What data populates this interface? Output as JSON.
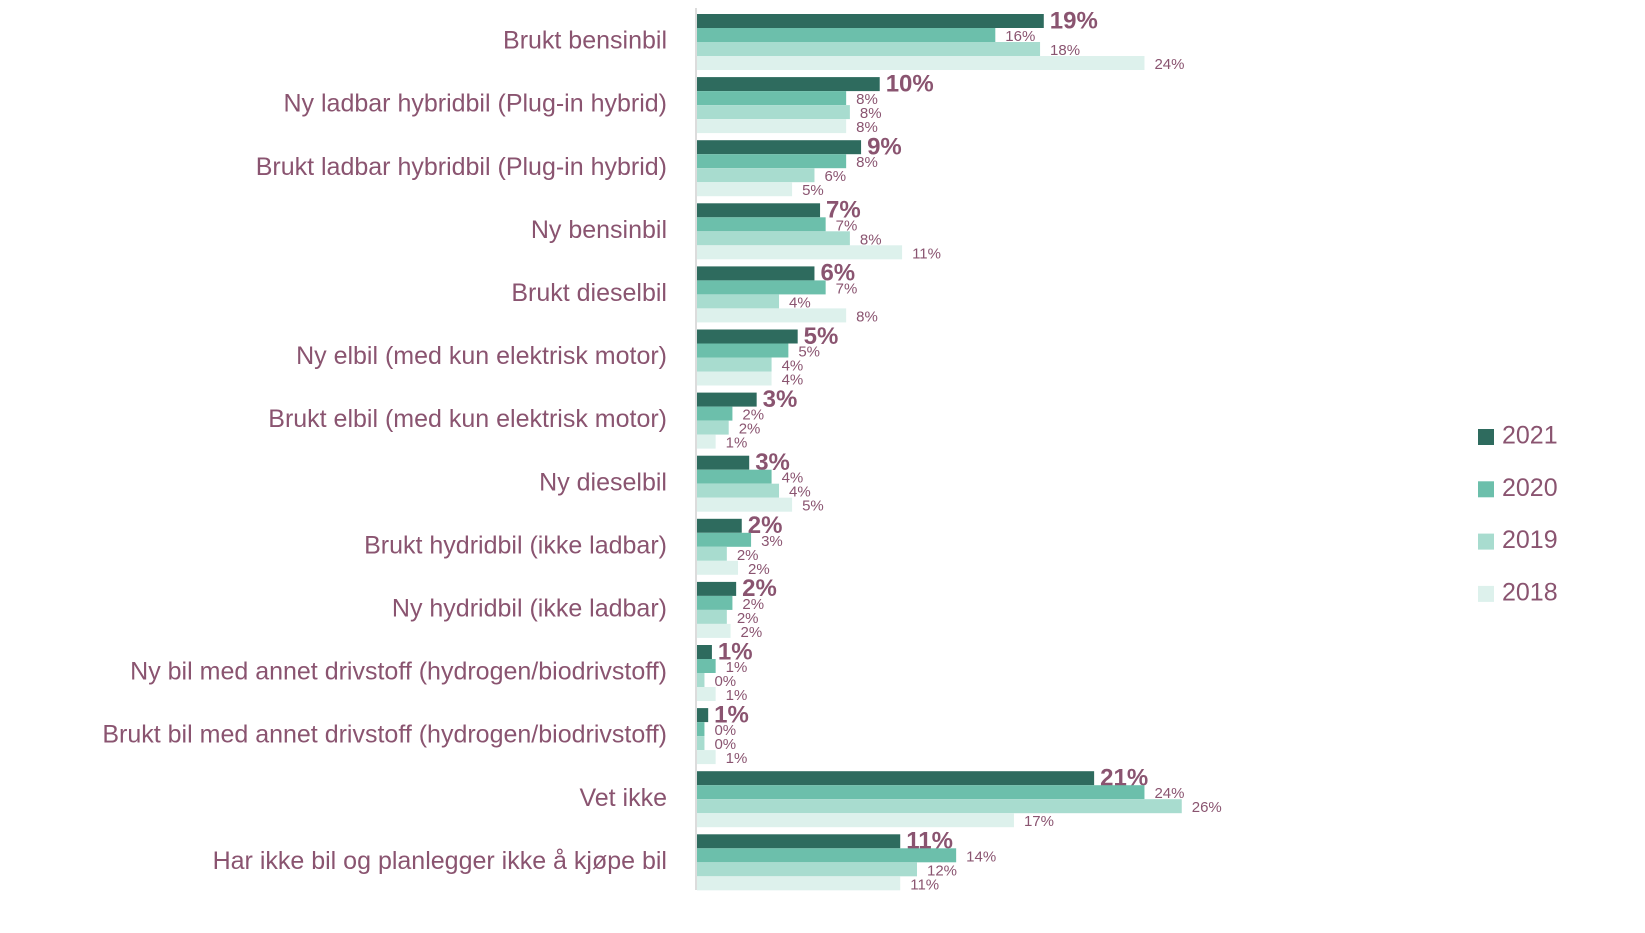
{
  "chart_data": {
    "type": "hbar",
    "categories": [
      "Brukt bensinbil",
      "Ny ladbar hybridbil  (Plug-in hybrid)",
      "Brukt ladbar hybridbil  (Plug-in hybrid)",
      "Ny bensinbil",
      "Brukt dieselbil",
      "Ny elbil (med kun elektrisk motor)",
      "Brukt elbil (med kun elektrisk motor)",
      "Ny dieselbil",
      "Brukt hydridbil (ikke ladbar)",
      "Ny hydridbil (ikke ladbar)",
      "Ny bil med annet drivstoff (hydrogen/biodrivstoff)",
      "Brukt bil med annet drivstoff (hydrogen/biodrivstoff)",
      "Vet ikke",
      "Har ikke bil og planlegger ikke å kjøpe bil"
    ],
    "series": [
      {
        "name": "2021",
        "color": "#2e6b5e",
        "values": [
          18.6,
          9.8,
          8.8,
          6.6,
          6.3,
          5.4,
          3.2,
          2.8,
          2.4,
          2.1,
          0.8,
          0.6,
          21.3,
          10.9
        ],
        "value_labels": [
          "19%",
          "10%",
          "9%",
          "7%",
          "6%",
          "5%",
          "3%",
          "3%",
          "2%",
          "2%",
          "1%",
          "1%",
          "21%",
          "11%"
        ]
      },
      {
        "name": "2020",
        "color": "#6cbfab",
        "values": [
          16.0,
          8.0,
          8.0,
          6.9,
          6.9,
          4.9,
          1.9,
          4.0,
          2.9,
          1.9,
          1.0,
          0.4,
          24.0,
          13.9
        ],
        "value_labels": [
          "16%",
          "8%",
          "8%",
          "7%",
          "7%",
          "5%",
          "2%",
          "4%",
          "3%",
          "2%",
          "1%",
          "0%",
          "24%",
          "14%"
        ]
      },
      {
        "name": "2019",
        "color": "#a8dccf",
        "values": [
          18.4,
          8.2,
          6.3,
          8.2,
          4.4,
          4.0,
          1.7,
          4.4,
          1.6,
          1.6,
          0.4,
          0.4,
          26.0,
          11.8
        ],
        "value_labels": [
          "18%",
          "8%",
          "6%",
          "8%",
          "4%",
          "4%",
          "2%",
          "4%",
          "2%",
          "2%",
          "0%",
          "0%",
          "26%",
          "12%"
        ]
      },
      {
        "name": "2018",
        "color": "#ddf1ec",
        "values": [
          24.0,
          8.0,
          5.1,
          11.0,
          8.0,
          4.0,
          1.0,
          5.1,
          2.2,
          1.8,
          1.0,
          1.0,
          17.0,
          10.9
        ],
        "value_labels": [
          "24%",
          "8%",
          "5%",
          "11%",
          "8%",
          "4%",
          "1%",
          "5%",
          "2%",
          "2%",
          "1%",
          "1%",
          "17%",
          "11%"
        ]
      }
    ],
    "xlim": [
      0,
      45
    ]
  }
}
